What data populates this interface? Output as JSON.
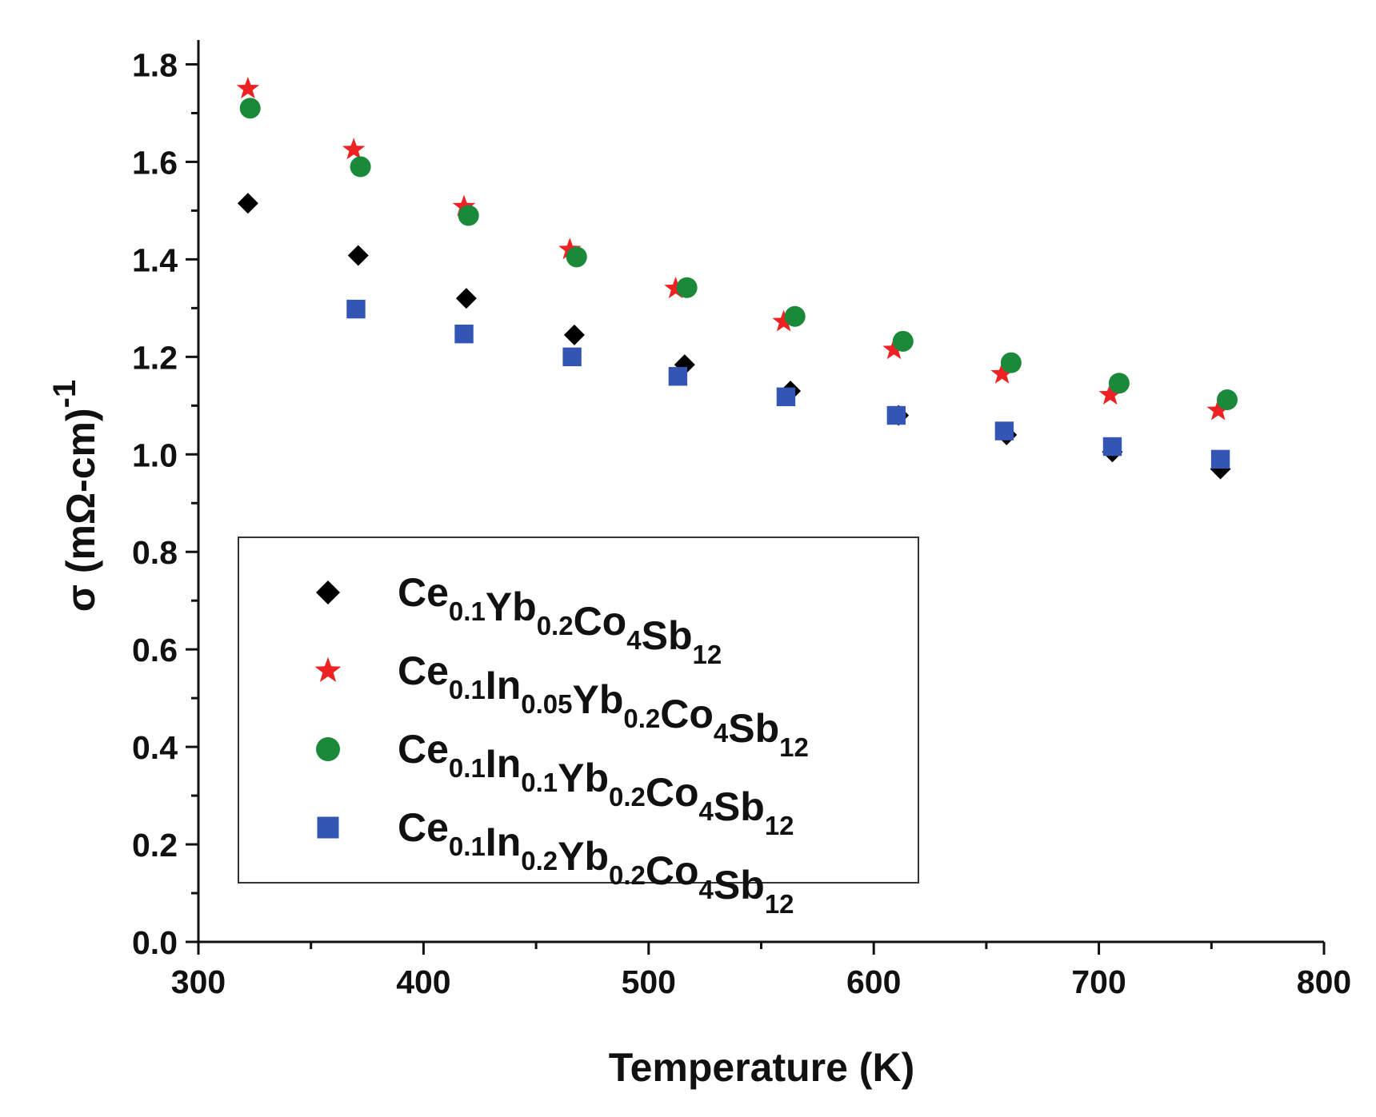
{
  "chart_data": {
    "type": "scatter",
    "title": "",
    "xlabel": "Temperature (K)",
    "ylabel": "σ (mΩ-cm)",
    "ylabel_superscript": "-1",
    "xlim": [
      300,
      800
    ],
    "ylim": [
      0.0,
      1.85
    ],
    "x_ticks": [
      "300",
      "400",
      "500",
      "600",
      "700",
      "800"
    ],
    "y_ticks": [
      "0.0",
      "0.2",
      "0.4",
      "0.6",
      "0.8",
      "1.0",
      "1.2",
      "1.4",
      "1.6",
      "1.8"
    ],
    "legend_position": "lower-left",
    "series": [
      {
        "name": "Ce0.1Yb0.2Co4Sb12",
        "label_parts": [
          [
            "Ce",
            "0.1"
          ],
          [
            "Yb",
            "0.2"
          ],
          [
            "Co",
            "4"
          ],
          [
            "Sb",
            "12"
          ]
        ],
        "marker": "diamond",
        "color": "#000000",
        "x": [
          322,
          371,
          419,
          467,
          516,
          563,
          611,
          659,
          706,
          754
        ],
        "y": [
          1.515,
          1.408,
          1.32,
          1.245,
          1.184,
          1.13,
          1.08,
          1.04,
          1.005,
          0.97
        ]
      },
      {
        "name": "Ce0.1In0.05Yb0.2Co4Sb12",
        "label_parts": [
          [
            "Ce",
            "0.1"
          ],
          [
            "In",
            "0.05"
          ],
          [
            "Yb",
            "0.2"
          ],
          [
            "Co",
            "4"
          ],
          [
            "Sb",
            "12"
          ]
        ],
        "marker": "star",
        "color": "#ee2222",
        "x": [
          322,
          369,
          418,
          465,
          512,
          560,
          609,
          657,
          705,
          753
        ],
        "y": [
          1.75,
          1.625,
          1.508,
          1.42,
          1.34,
          1.272,
          1.215,
          1.165,
          1.122,
          1.09
        ]
      },
      {
        "name": "Ce0.1In0.1Yb0.2Co4Sb12",
        "label_parts": [
          [
            "Ce",
            "0.1"
          ],
          [
            "In",
            "0.1"
          ],
          [
            "Yb",
            "0.2"
          ],
          [
            "Co",
            "4"
          ],
          [
            "Sb",
            "12"
          ]
        ],
        "marker": "circle",
        "color": "#1a8a3a",
        "x": [
          323,
          372,
          420,
          468,
          517,
          565,
          613,
          661,
          709,
          757
        ],
        "y": [
          1.71,
          1.59,
          1.49,
          1.405,
          1.342,
          1.283,
          1.232,
          1.188,
          1.146,
          1.112
        ]
      },
      {
        "name": "Ce0.1In0.2Yb0.2Co4Sb12",
        "label_parts": [
          [
            "Ce",
            "0.1"
          ],
          [
            "In",
            "0.2"
          ],
          [
            "Yb",
            "0.2"
          ],
          [
            "Co",
            "4"
          ],
          [
            "Sb",
            "12"
          ]
        ],
        "marker": "square",
        "color": "#3356b5",
        "x": [
          370,
          418,
          466,
          513,
          561,
          610,
          658,
          706,
          754
        ],
        "y": [
          1.298,
          1.247,
          1.2,
          1.16,
          1.118,
          1.08,
          1.048,
          1.016,
          0.99
        ]
      }
    ]
  }
}
